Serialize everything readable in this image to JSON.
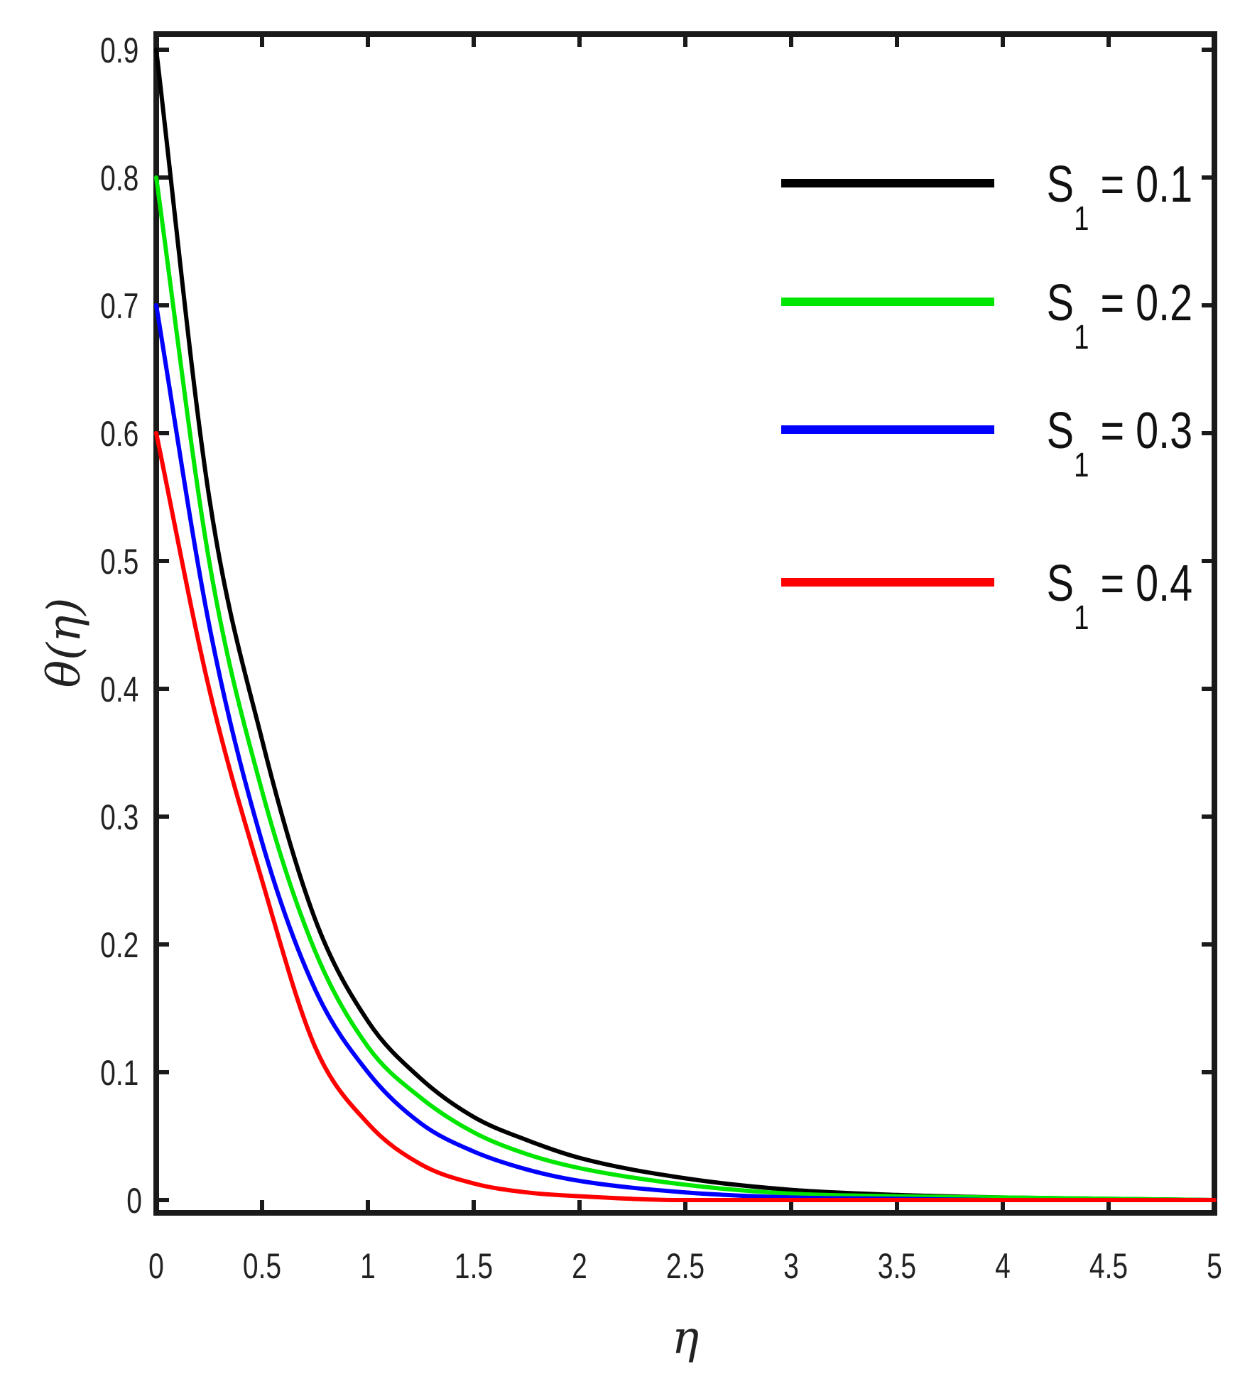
{
  "chart_data": {
    "type": "line",
    "xlabel": "η",
    "ylabel": "θ(η)",
    "xlim": [
      0,
      5
    ],
    "ylim": [
      0,
      0.9
    ],
    "xticks": [
      0,
      0.5,
      1,
      1.5,
      2,
      2.5,
      3,
      3.5,
      4,
      4.5,
      5
    ],
    "xtick_labels": [
      "0",
      "0.5",
      "1",
      "1.5",
      "2",
      "2.5",
      "3",
      "3.5",
      "4",
      "4.5",
      "5"
    ],
    "yticks": [
      0,
      0.1,
      0.2,
      0.3,
      0.4,
      0.5,
      0.6,
      0.7,
      0.8,
      0.9
    ],
    "ytick_labels": [
      "0",
      "0.1",
      "0.2",
      "0.3",
      "0.4",
      "0.5",
      "0.6",
      "0.7",
      "0.8",
      "0.9"
    ],
    "grid": false,
    "legend_position": "top-right",
    "x": [
      0,
      0.25,
      0.5,
      0.75,
      1,
      1.25,
      1.5,
      1.75,
      2,
      2.5,
      3,
      3.5,
      4,
      4.5,
      5
    ],
    "series": [
      {
        "name": "S1 = 0.1",
        "label_main": "S",
        "label_sub": "1",
        "label_rest": " = 0.1",
        "color": "#000000",
        "values": [
          0.9,
          0.55,
          0.36,
          0.22,
          0.14,
          0.095,
          0.065,
          0.047,
          0.033,
          0.017,
          0.008,
          0.004,
          0.002,
          0.001,
          0.0
        ]
      },
      {
        "name": "S1 = 0.2",
        "label_main": "S",
        "label_sub": "1",
        "label_rest": " = 0.2",
        "color": "#00e600",
        "values": [
          0.8,
          0.5,
          0.32,
          0.195,
          0.12,
          0.08,
          0.053,
          0.036,
          0.025,
          0.012,
          0.005,
          0.003,
          0.002,
          0.001,
          0.0
        ]
      },
      {
        "name": "S1 = 0.3",
        "label_main": "S",
        "label_sub": "1",
        "label_rest": " = 0.3",
        "color": "#0000ff",
        "values": [
          0.7,
          0.45,
          0.28,
          0.165,
          0.1,
          0.06,
          0.038,
          0.024,
          0.015,
          0.006,
          0.002,
          0.001,
          0.0,
          0.0,
          0.0
        ]
      },
      {
        "name": "S1 = 0.4",
        "label_main": "S",
        "label_sub": "1",
        "label_rest": " = 0.4",
        "color": "#ff0000",
        "values": [
          0.6,
          0.4,
          0.25,
          0.12,
          0.06,
          0.028,
          0.013,
          0.006,
          0.003,
          0.0,
          0.0,
          0.0,
          0.0,
          0.0,
          0.0
        ]
      }
    ]
  }
}
